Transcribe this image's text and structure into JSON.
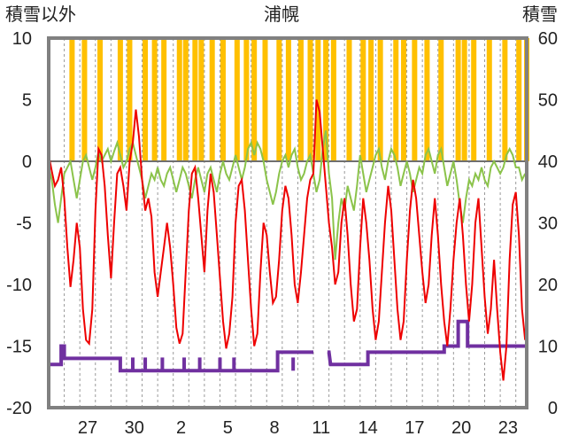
{
  "chart_data": {
    "type": "line",
    "title": "浦幌",
    "ylabel_left": "積雪以外",
    "ylabel_right": "積雪",
    "y_left": {
      "min": -20,
      "max": 10,
      "ticks": [
        "10",
        "5",
        "0",
        "-5",
        "-10",
        "-15",
        "-20"
      ]
    },
    "y_right": {
      "min": 0,
      "max": 60,
      "ticks": [
        "60",
        "50",
        "40",
        "30",
        "20",
        "10",
        "0"
      ]
    },
    "x_day_range": [
      24.5,
      25.2
    ],
    "x_ticks": [
      {
        "label": "27",
        "day": 2.5
      },
      {
        "label": "30",
        "day": 5.5
      },
      {
        "label": "2",
        "day": 8.5
      },
      {
        "label": "5",
        "day": 11.5
      },
      {
        "label": "8",
        "day": 14.5
      },
      {
        "label": "11",
        "day": 17.5
      },
      {
        "label": "14",
        "day": 20.5
      },
      {
        "label": "17",
        "day": 23.5
      },
      {
        "label": "20",
        "day": 26.5
      },
      {
        "label": "23",
        "day": 29.5
      }
    ],
    "grid": "dashed vertical lines every day; horizontal zero line",
    "colors": {
      "temperature": "#ee0000",
      "precipitation": "#ffc000",
      "other": "#8bc34a",
      "snow_depth": "#7030a0",
      "axis": "#808080"
    },
    "precipitation_bars_day": [
      1.5,
      2.3,
      3.3,
      4.6,
      5.2,
      6.2,
      6.8,
      7.4,
      8.4,
      8.8,
      9.4,
      9.8,
      10.5,
      11.2,
      12.1,
      12.7,
      13.2,
      13.9,
      14.8,
      15.4,
      16.2,
      16.8,
      17.3,
      17.8,
      18.3,
      19.3,
      20.2,
      20.7,
      21.3,
      22.3,
      22.8,
      23.5,
      24.3,
      25.2,
      26.3,
      26.7,
      27.3,
      28.3,
      29.3,
      30.2,
      30.7
    ],
    "temperature_series": [
      [
        0.0,
        0.5
      ],
      [
        0.2,
        -0.8
      ],
      [
        0.4,
        -2.0
      ],
      [
        0.6,
        -1.5
      ],
      [
        0.8,
        -0.5
      ],
      [
        1.0,
        -3.0
      ],
      [
        1.2,
        -7.0
      ],
      [
        1.4,
        -10.2
      ],
      [
        1.6,
        -8.0
      ],
      [
        1.8,
        -5.0
      ],
      [
        2.0,
        -7.0
      ],
      [
        2.2,
        -12.0
      ],
      [
        2.4,
        -14.5
      ],
      [
        2.6,
        -14.8
      ],
      [
        2.8,
        -12.0
      ],
      [
        3.0,
        -4.0
      ],
      [
        3.2,
        1.0
      ],
      [
        3.4,
        0.5
      ],
      [
        3.6,
        -2.0
      ],
      [
        3.8,
        -6.0
      ],
      [
        4.0,
        -9.5
      ],
      [
        4.2,
        -5.0
      ],
      [
        4.4,
        -1.0
      ],
      [
        4.6,
        -0.5
      ],
      [
        4.8,
        -2.0
      ],
      [
        5.0,
        -4.0
      ],
      [
        5.2,
        0.0
      ],
      [
        5.4,
        1.5
      ],
      [
        5.6,
        4.2
      ],
      [
        5.8,
        2.0
      ],
      [
        6.0,
        -1.5
      ],
      [
        6.2,
        -4.0
      ],
      [
        6.4,
        -3.0
      ],
      [
        6.6,
        -4.5
      ],
      [
        6.8,
        -9.0
      ],
      [
        7.0,
        -11.0
      ],
      [
        7.2,
        -9.0
      ],
      [
        7.4,
        -7.0
      ],
      [
        7.6,
        -5.0
      ],
      [
        7.8,
        -7.0
      ],
      [
        8.0,
        -10.0
      ],
      [
        8.2,
        -13.5
      ],
      [
        8.4,
        -14.8
      ],
      [
        8.6,
        -14.0
      ],
      [
        8.8,
        -9.0
      ],
      [
        9.0,
        -4.0
      ],
      [
        9.2,
        -1.0
      ],
      [
        9.4,
        -0.5
      ],
      [
        9.6,
        -3.0
      ],
      [
        9.8,
        -6.0
      ],
      [
        10.0,
        -9.0
      ],
      [
        10.2,
        -4.0
      ],
      [
        10.4,
        -1.0
      ],
      [
        10.6,
        -2.5
      ],
      [
        10.8,
        -6.0
      ],
      [
        11.0,
        -9.5
      ],
      [
        11.2,
        -13.0
      ],
      [
        11.4,
        -15.2
      ],
      [
        11.6,
        -14.0
      ],
      [
        11.8,
        -11.0
      ],
      [
        12.0,
        -5.0
      ],
      [
        12.2,
        -2.0
      ],
      [
        12.4,
        -1.5
      ],
      [
        12.6,
        -4.0
      ],
      [
        12.8,
        -8.0
      ],
      [
        13.0,
        -12.0
      ],
      [
        13.2,
        -15.0
      ],
      [
        13.4,
        -14.0
      ],
      [
        13.6,
        -9.0
      ],
      [
        13.8,
        -5.0
      ],
      [
        14.0,
        -6.0
      ],
      [
        14.2,
        -9.0
      ],
      [
        14.4,
        -11.5
      ],
      [
        14.6,
        -11.0
      ],
      [
        14.8,
        -8.0
      ],
      [
        15.0,
        -4.0
      ],
      [
        15.2,
        -2.0
      ],
      [
        15.4,
        -3.0
      ],
      [
        15.6,
        -6.0
      ],
      [
        15.8,
        -10.0
      ],
      [
        16.0,
        -11.5
      ],
      [
        16.2,
        -9.0
      ],
      [
        16.4,
        -6.0
      ],
      [
        16.6,
        -3.0
      ],
      [
        16.8,
        -1.5
      ],
      [
        17.0,
        -1.0
      ],
      [
        17.2,
        5.0
      ],
      [
        17.4,
        4.0
      ],
      [
        17.6,
        1.0
      ],
      [
        17.8,
        -2.0
      ],
      [
        18.0,
        -5.0
      ],
      [
        18.2,
        -7.0
      ],
      [
        18.4,
        -10.0
      ],
      [
        18.6,
        -9.0
      ],
      [
        18.8,
        -5.0
      ],
      [
        19.0,
        -3.0
      ],
      [
        19.2,
        -6.0
      ],
      [
        19.4,
        -10.0
      ],
      [
        19.6,
        -13.0
      ],
      [
        19.8,
        -12.0
      ],
      [
        20.0,
        -7.0
      ],
      [
        20.2,
        -3.0
      ],
      [
        20.4,
        -5.0
      ],
      [
        20.6,
        -8.0
      ],
      [
        20.8,
        -12.0
      ],
      [
        21.0,
        -14.5
      ],
      [
        21.2,
        -13.0
      ],
      [
        21.4,
        -9.0
      ],
      [
        21.6,
        -5.0
      ],
      [
        21.8,
        -2.0
      ],
      [
        22.0,
        -4.0
      ],
      [
        22.2,
        -8.0
      ],
      [
        22.4,
        -12.0
      ],
      [
        22.6,
        -14.5
      ],
      [
        22.8,
        -13.0
      ],
      [
        23.0,
        -8.0
      ],
      [
        23.2,
        -4.0
      ],
      [
        23.4,
        -1.5
      ],
      [
        23.6,
        -3.0
      ],
      [
        23.8,
        -6.0
      ],
      [
        24.0,
        -9.0
      ],
      [
        24.2,
        -11.5
      ],
      [
        24.4,
        -10.0
      ],
      [
        24.6,
        -6.0
      ],
      [
        24.8,
        -3.0
      ],
      [
        25.0,
        -6.0
      ],
      [
        25.2,
        -10.0
      ],
      [
        25.4,
        -13.0
      ],
      [
        25.6,
        -15.0
      ],
      [
        25.8,
        -12.0
      ],
      [
        26.0,
        -8.0
      ],
      [
        26.2,
        -5.0
      ],
      [
        26.4,
        -3.0
      ],
      [
        26.6,
        -6.0
      ],
      [
        26.8,
        -10.0
      ],
      [
        27.0,
        -13.0
      ],
      [
        27.2,
        -10.0
      ],
      [
        27.4,
        -5.0
      ],
      [
        27.6,
        -3.0
      ],
      [
        27.8,
        -7.0
      ],
      [
        28.0,
        -11.0
      ],
      [
        28.2,
        -14.0
      ],
      [
        28.4,
        -12.0
      ],
      [
        28.6,
        -8.0
      ],
      [
        28.8,
        -12.0
      ],
      [
        29.0,
        -15.5
      ],
      [
        29.2,
        -17.8
      ],
      [
        29.4,
        -15.0
      ],
      [
        29.6,
        -8.0
      ],
      [
        29.8,
        -3.5
      ],
      [
        30.0,
        -2.5
      ],
      [
        30.2,
        -6.0
      ],
      [
        30.4,
        -12.0
      ],
      [
        30.6,
        -14.5
      ]
    ],
    "other_series": [
      [
        0.0,
        -0.5
      ],
      [
        0.2,
        -1.5
      ],
      [
        0.4,
        -3.5
      ],
      [
        0.6,
        -5.0
      ],
      [
        0.8,
        -3.0
      ],
      [
        1.0,
        -1.0
      ],
      [
        1.2,
        -0.5
      ],
      [
        1.4,
        0.0
      ],
      [
        1.6,
        -1.5
      ],
      [
        1.8,
        -3.0
      ],
      [
        2.0,
        -1.5
      ],
      [
        2.2,
        0.0
      ],
      [
        2.4,
        0.5
      ],
      [
        2.6,
        -0.5
      ],
      [
        2.8,
        -1.5
      ],
      [
        3.0,
        -0.5
      ],
      [
        3.2,
        0.8
      ],
      [
        3.4,
        0.0
      ],
      [
        3.6,
        0.5
      ],
      [
        3.8,
        1.0
      ],
      [
        4.0,
        0.0
      ],
      [
        4.2,
        0.8
      ],
      [
        4.4,
        1.5
      ],
      [
        4.6,
        0.5
      ],
      [
        4.8,
        -0.5
      ],
      [
        5.0,
        0.0
      ],
      [
        5.2,
        1.0
      ],
      [
        5.4,
        1.5
      ],
      [
        5.6,
        0.5
      ],
      [
        5.8,
        -0.5
      ],
      [
        6.0,
        -1.5
      ],
      [
        6.2,
        -3.0
      ],
      [
        6.4,
        -2.0
      ],
      [
        6.6,
        -1.0
      ],
      [
        6.8,
        -1.5
      ],
      [
        7.0,
        -0.5
      ],
      [
        7.2,
        -1.5
      ],
      [
        7.4,
        -2.0
      ],
      [
        7.6,
        -1.0
      ],
      [
        7.8,
        -0.5
      ],
      [
        8.0,
        -1.5
      ],
      [
        8.2,
        -2.5
      ],
      [
        8.4,
        -1.5
      ],
      [
        8.6,
        -0.5
      ],
      [
        8.8,
        -1.0
      ],
      [
        9.0,
        -2.0
      ],
      [
        9.2,
        -3.0
      ],
      [
        9.4,
        -1.5
      ],
      [
        9.6,
        -0.5
      ],
      [
        9.8,
        -1.5
      ],
      [
        10.0,
        -2.5
      ],
      [
        10.2,
        -1.0
      ],
      [
        10.4,
        -0.5
      ],
      [
        10.6,
        -1.5
      ],
      [
        10.8,
        -2.5
      ],
      [
        11.0,
        -1.0
      ],
      [
        11.2,
        0.0
      ],
      [
        11.4,
        -1.0
      ],
      [
        11.6,
        -1.5
      ],
      [
        11.8,
        -0.5
      ],
      [
        12.0,
        0.5
      ],
      [
        12.2,
        -0.5
      ],
      [
        12.4,
        -1.5
      ],
      [
        12.6,
        -0.5
      ],
      [
        12.8,
        1.0
      ],
      [
        13.0,
        1.5
      ],
      [
        13.2,
        0.5
      ],
      [
        13.4,
        1.5
      ],
      [
        13.6,
        1.0
      ],
      [
        13.8,
        0.0
      ],
      [
        14.0,
        -1.5
      ],
      [
        14.2,
        -2.5
      ],
      [
        14.4,
        -3.5
      ],
      [
        14.6,
        -2.5
      ],
      [
        14.8,
        -1.0
      ],
      [
        15.0,
        0.0
      ],
      [
        15.2,
        0.5
      ],
      [
        15.4,
        -0.5
      ],
      [
        15.6,
        0.5
      ],
      [
        15.8,
        1.0
      ],
      [
        16.0,
        -0.5
      ],
      [
        16.2,
        -1.5
      ],
      [
        16.4,
        -1.0
      ],
      [
        16.6,
        0.0
      ],
      [
        16.8,
        0.5
      ],
      [
        17.0,
        -1.0
      ],
      [
        17.2,
        -2.5
      ],
      [
        17.4,
        -1.5
      ],
      [
        17.6,
        1.0
      ],
      [
        17.8,
        2.5
      ],
      [
        18.0,
        -1.0
      ],
      [
        18.2,
        -3.0
      ],
      [
        18.4,
        -8.0
      ],
      [
        18.6,
        -5.0
      ],
      [
        18.8,
        -3.0
      ],
      [
        19.0,
        -4.0
      ],
      [
        19.2,
        -2.0
      ],
      [
        19.4,
        -3.0
      ],
      [
        19.6,
        -4.0
      ],
      [
        19.8,
        -2.0
      ],
      [
        20.0,
        0.5
      ],
      [
        20.2,
        -1.0
      ],
      [
        20.4,
        -2.5
      ],
      [
        20.6,
        -1.5
      ],
      [
        20.8,
        -0.5
      ],
      [
        21.0,
        0.5
      ],
      [
        21.2,
        1.0
      ],
      [
        21.4,
        -0.5
      ],
      [
        21.6,
        -1.5
      ],
      [
        21.8,
        0.0
      ],
      [
        22.0,
        1.0
      ],
      [
        22.2,
        0.5
      ],
      [
        22.4,
        -0.5
      ],
      [
        22.6,
        -2.0
      ],
      [
        22.8,
        -1.0
      ],
      [
        23.0,
        0.0
      ],
      [
        23.2,
        -1.0
      ],
      [
        23.4,
        -2.5
      ],
      [
        23.6,
        -1.5
      ],
      [
        23.8,
        -0.5
      ],
      [
        24.0,
        -1.0
      ],
      [
        24.2,
        0.5
      ],
      [
        24.4,
        1.0
      ],
      [
        24.6,
        0.0
      ],
      [
        24.8,
        -1.0
      ],
      [
        25.0,
        0.5
      ],
      [
        25.2,
        1.0
      ],
      [
        25.4,
        -0.5
      ],
      [
        25.6,
        -2.0
      ],
      [
        25.8,
        -1.0
      ],
      [
        26.0,
        0.0
      ],
      [
        26.2,
        -1.5
      ],
      [
        26.4,
        -3.5
      ],
      [
        26.6,
        -5.0
      ],
      [
        26.8,
        -3.0
      ],
      [
        27.0,
        -1.5
      ],
      [
        27.2,
        -2.0
      ],
      [
        27.4,
        -1.0
      ],
      [
        27.6,
        -1.5
      ],
      [
        27.8,
        -0.5
      ],
      [
        28.0,
        -1.5
      ],
      [
        28.2,
        -2.0
      ],
      [
        28.4,
        -0.5
      ],
      [
        28.6,
        0.0
      ],
      [
        28.8,
        -0.5
      ],
      [
        29.0,
        -1.0
      ],
      [
        29.2,
        -0.5
      ],
      [
        29.4,
        0.5
      ],
      [
        29.6,
        1.0
      ],
      [
        29.8,
        0.5
      ],
      [
        30.0,
        -0.5
      ],
      [
        30.2,
        -0.5
      ],
      [
        30.4,
        -1.5
      ],
      [
        30.6,
        -1.0
      ]
    ],
    "snow_depth_series": [
      [
        0.0,
        7
      ],
      [
        0.8,
        7
      ],
      [
        0.8,
        10
      ],
      [
        1.0,
        10
      ],
      [
        1.0,
        8
      ],
      [
        4.6,
        8
      ],
      [
        4.6,
        6
      ],
      [
        10.6,
        6
      ],
      [
        14.7,
        6
      ],
      [
        14.7,
        9
      ],
      [
        18.0,
        9
      ],
      [
        18.1,
        7
      ],
      [
        20.5,
        7
      ],
      [
        20.5,
        9
      ],
      [
        24.0,
        9
      ],
      [
        25.0,
        9
      ],
      [
        25.4,
        9
      ],
      [
        25.4,
        10
      ],
      [
        26.3,
        10
      ],
      [
        26.3,
        14
      ],
      [
        26.9,
        14
      ],
      [
        26.9,
        10
      ],
      [
        30.7,
        10
      ]
    ],
    "snow_depth_dips_day": [
      5.4,
      6.2,
      7.3,
      8.7,
      9.7,
      11.0,
      11.9,
      15.7
    ],
    "snow_depth_gap_day": [
      17.0,
      17.9
    ]
  }
}
